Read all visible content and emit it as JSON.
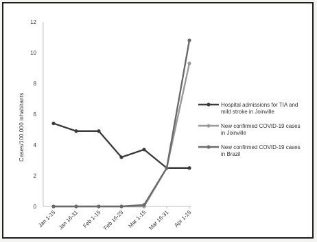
{
  "chart_data": {
    "type": "line",
    "title": "",
    "xlabel": "",
    "ylabel": "Cases/100.000 inhabitants",
    "categories": [
      "Jan 1-15",
      "Jan 16-31",
      "Feb 1-15",
      "Feb 16-29",
      "Mar 1-15",
      "Mar 16-31",
      "Apr 1-15"
    ],
    "ylim": [
      0,
      12
    ],
    "yticks": [
      0,
      2,
      4,
      6,
      8,
      10,
      12
    ],
    "grid": false,
    "legend_position": "right",
    "series": [
      {
        "name": "Hospital admissions for TIA and mild stroke in Joinville",
        "legend_lines": [
          "Hospital admissions for TIA and",
          "mild stroke in Joinville"
        ],
        "values": [
          5.4,
          4.9,
          4.9,
          3.2,
          3.7,
          2.5,
          2.5
        ],
        "color": "#3b3b3b"
      },
      {
        "name": "New confirmed COVID-19 cases in Joinville",
        "legend_lines": [
          "New confirmed COVID-19 cases",
          "in Joinville"
        ],
        "values": [
          0,
          0,
          0,
          0,
          0,
          2.5,
          9.3
        ],
        "color": "#9a9a9a"
      },
      {
        "name": "New confirmed COVID-19 cases in Brazil",
        "legend_lines": [
          "New confirmed COVID-19 cases",
          "in Brazil"
        ],
        "values": [
          0,
          0,
          0,
          0,
          0.1,
          2.5,
          10.8
        ],
        "color": "#6a6a6a"
      }
    ]
  }
}
